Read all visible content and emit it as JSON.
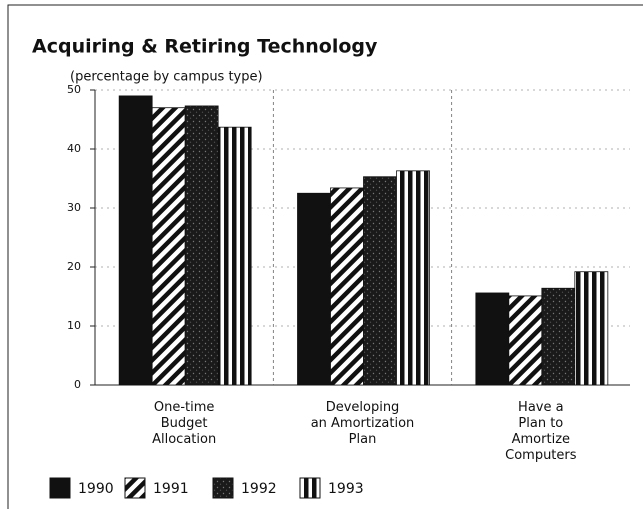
{
  "chart_data": {
    "type": "bar",
    "title": "Acquiring & Retiring Technology",
    "subtitle": "(percentage by campus type)",
    "categories": [
      "One-time\nBudget\nAllocation",
      "Developing\nan Amortization\nPlan",
      "Have a\nPlan to\nAmortize\nComputers"
    ],
    "series": [
      {
        "name": "1990",
        "color": "#111111",
        "pattern": "solid",
        "values": [
          49,
          32.5,
          15.6
        ]
      },
      {
        "name": "1991",
        "color": "#111111",
        "pattern": "diagonal",
        "values": [
          47,
          33.4,
          15.1
        ]
      },
      {
        "name": "1992",
        "color": "#222222",
        "pattern": "stipple",
        "values": [
          47.3,
          35.3,
          16.4
        ]
      },
      {
        "name": "1993",
        "color": "#111111",
        "pattern": "vertical",
        "values": [
          43.7,
          36.3,
          19.2
        ]
      }
    ],
    "ylim": [
      0,
      50
    ],
    "yticks": [
      0,
      10,
      20,
      30,
      40,
      50
    ],
    "grid": true,
    "legend": "bottom"
  }
}
